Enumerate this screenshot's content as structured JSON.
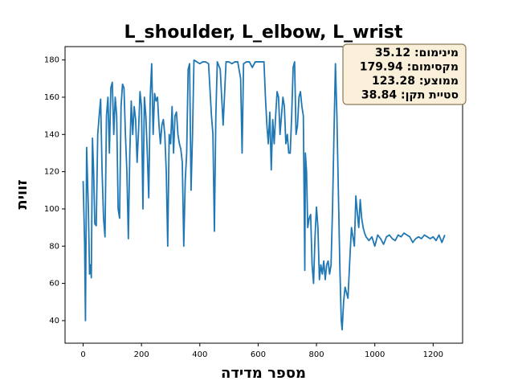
{
  "chart_data": {
    "type": "line",
    "title": "L_shoulder, L_elbow, L_wrist",
    "x_label": "מספר מדידה",
    "y_label": "זווית",
    "color": "#1f77b4",
    "annotations": [
      "מינימום: 35.12",
      "מקסימום: 179.94",
      "ממוצע: 123.28",
      "סטיית תקן: 38.84"
    ],
    "xlim": [
      -62,
      1301
    ],
    "ylim": [
      27.88,
      187.18
    ],
    "xticks": [
      0,
      200,
      400,
      600,
      800,
      1000,
      1200
    ],
    "yticks": [
      40,
      60,
      80,
      100,
      120,
      140,
      160,
      180
    ],
    "x": [
      0,
      5,
      8,
      12,
      18,
      22,
      26,
      28,
      32,
      36,
      40,
      45,
      50,
      55,
      60,
      65,
      70,
      75,
      80,
      85,
      90,
      95,
      100,
      105,
      110,
      115,
      120,
      125,
      130,
      135,
      140,
      145,
      150,
      155,
      160,
      165,
      170,
      175,
      180,
      185,
      190,
      195,
      200,
      205,
      210,
      215,
      220,
      225,
      230,
      235,
      240,
      245,
      250,
      255,
      260,
      265,
      270,
      275,
      280,
      285,
      290,
      295,
      300,
      305,
      310,
      315,
      320,
      325,
      330,
      335,
      340,
      345,
      350,
      355,
      360,
      365,
      370,
      375,
      380,
      390,
      400,
      410,
      420,
      430,
      440,
      445,
      450,
      455,
      460,
      470,
      480,
      490,
      500,
      510,
      520,
      530,
      540,
      545,
      550,
      560,
      570,
      580,
      590,
      600,
      610,
      620,
      625,
      630,
      635,
      640,
      645,
      650,
      655,
      660,
      665,
      670,
      675,
      680,
      685,
      690,
      695,
      700,
      705,
      710,
      715,
      720,
      725,
      730,
      735,
      740,
      745,
      750,
      755,
      760,
      762,
      766,
      770,
      775,
      780,
      785,
      790,
      795,
      800,
      805,
      810,
      815,
      820,
      825,
      830,
      835,
      840,
      845,
      850,
      855,
      860,
      865,
      870,
      875,
      880,
      885,
      888,
      893,
      898,
      903,
      908,
      915,
      920,
      925,
      930,
      935,
      940,
      945,
      950,
      955,
      960,
      965,
      970,
      980,
      990,
      1000,
      1010,
      1020,
      1030,
      1040,
      1050,
      1060,
      1070,
      1080,
      1090,
      1100,
      1110,
      1120,
      1130,
      1140,
      1150,
      1160,
      1170,
      1180,
      1190,
      1200,
      1210,
      1220,
      1230,
      1240
    ],
    "values": [
      115,
      82,
      40,
      133,
      100,
      65,
      70,
      63,
      138,
      120,
      92,
      91,
      140,
      150,
      159,
      120,
      95,
      85,
      150,
      160,
      130,
      165,
      168,
      140,
      160,
      150,
      100,
      95,
      155,
      167,
      165,
      140,
      120,
      84,
      130,
      158,
      140,
      155,
      148,
      125,
      142,
      163,
      155,
      100,
      160,
      150,
      130,
      106,
      160,
      178,
      140,
      162,
      158,
      160,
      145,
      135,
      145,
      148,
      140,
      120,
      80,
      140,
      135,
      155,
      130,
      150,
      152,
      140,
      135,
      132,
      125,
      80,
      115,
      130,
      175,
      178,
      110,
      140,
      179.94,
      179,
      178,
      179,
      179,
      178,
      150,
      140,
      88,
      150,
      179,
      175,
      145,
      179,
      179,
      178,
      179,
      179,
      170,
      130,
      178,
      179,
      179,
      176,
      179,
      179,
      179,
      179,
      160,
      145,
      135,
      152,
      121,
      148,
      135,
      150,
      163,
      160,
      140,
      150,
      160,
      155,
      135,
      140,
      130,
      130,
      150,
      176,
      179,
      140,
      145,
      160,
      163,
      155,
      150,
      67,
      130,
      120,
      90,
      95,
      97,
      70,
      60,
      85,
      101,
      90,
      62,
      70,
      65,
      72,
      62,
      70,
      72,
      65,
      70,
      100,
      140,
      178,
      150,
      110,
      70,
      40,
      35.12,
      50,
      58,
      55,
      52,
      75,
      90,
      85,
      80,
      107,
      98,
      90,
      105,
      95,
      90,
      87,
      85,
      83,
      85,
      80,
      86,
      84,
      81,
      85,
      86,
      84,
      83,
      86,
      85,
      87,
      86,
      85,
      82,
      84,
      85,
      84,
      86,
      85,
      84,
      85,
      83,
      86,
      82,
      86
    ]
  }
}
